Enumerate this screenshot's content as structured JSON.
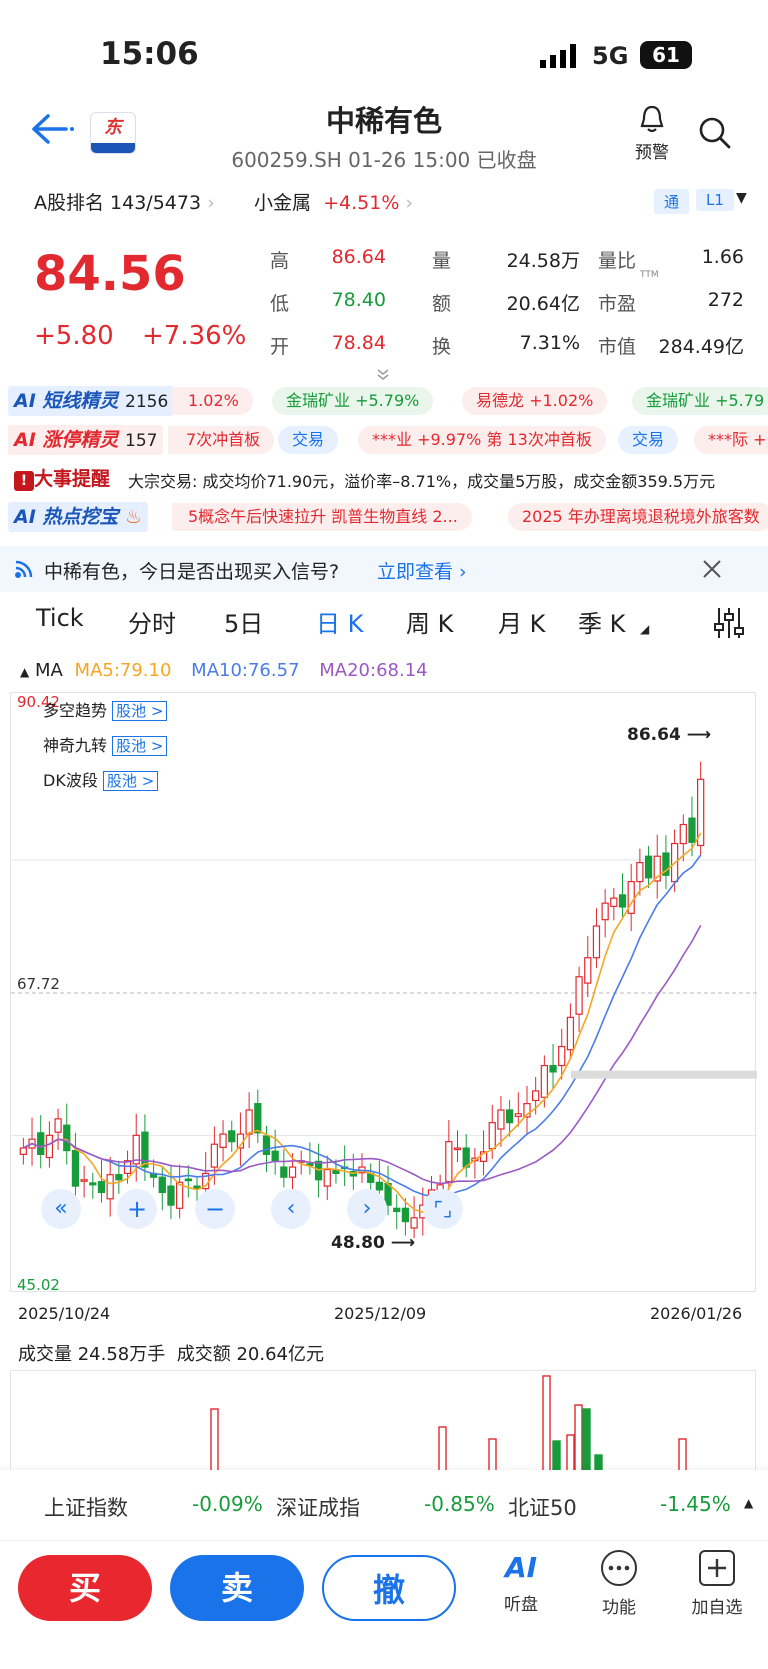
{
  "status": {
    "time": "15:06",
    "network": "5G",
    "battery": "61"
  },
  "header": {
    "title": "中稀有色",
    "subtitle": "600259.SH 01-26 15:00 已收盘",
    "alert_label": "预警"
  },
  "rankbar": {
    "rank": "A股排名 143/5473",
    "sector": "小金属",
    "sector_change": "+4.51%",
    "tag_tong": "通",
    "tag_l1": "L1"
  },
  "quote": {
    "price": "84.56",
    "change": "+5.80",
    "change_pct": "+7.36%",
    "rows": [
      {
        "l1": "高",
        "v1": "86.64",
        "l2": "量",
        "v2": "24.58万",
        "l3": "量比",
        "v3": "1.66"
      },
      {
        "l1": "低",
        "v1": "78.40",
        "l2": "额",
        "v2": "20.64亿",
        "l3": "市盈",
        "v3": "272"
      },
      {
        "l1": "开",
        "v1": "78.84",
        "l2": "换",
        "v2": "7.31%",
        "l3": "市值",
        "v3": "284.49亿"
      }
    ],
    "ttm": "TTM"
  },
  "tickers": {
    "short": {
      "label": "短线精灵",
      "count": "2156",
      "items": [
        "1.02%",
        "金瑞矿业 +5.79%",
        "易德龙 +1.02%",
        "金瑞矿业 +5.79"
      ]
    },
    "limit": {
      "label": "涨停精灵",
      "count": "157",
      "items": [
        "7次冲首板",
        "交易",
        "***业 +9.97% 第 13次冲首板",
        "交易",
        "***际 +"
      ]
    },
    "event": {
      "label": "大事提醒",
      "text": "大宗交易: 成交均价71.90元，溢价率–8.71%，成交量5万股，成交金额359.5万元"
    },
    "hot": {
      "label": "热点挖宝",
      "items": [
        "5概念午后快速拉升 凯普生物直线 2...",
        "2025 年办理离境退税境外旅客数"
      ]
    }
  },
  "banner": {
    "text": "中稀有色，今日是否出现买入信号?",
    "link": "立即查看"
  },
  "tabs": [
    "Tick",
    "分时",
    "5日",
    "日 K",
    "周 K",
    "月 K",
    "季 K"
  ],
  "active_tab": 3,
  "ma": {
    "label": "MA",
    "ma5": "MA5:79.10",
    "ma10": "MA10:76.57",
    "ma20": "MA20:68.14"
  },
  "overlay": {
    "items": [
      "多空趋势",
      "神奇九转",
      "DK波段"
    ],
    "pool": "股池 >"
  },
  "chart_data": {
    "type": "candlestick",
    "y_max_label": "90.42",
    "y_mid_label": "67.72",
    "y_min_label": "45.02",
    "high_label": "86.64",
    "low_label": "48.80",
    "x_labels": [
      "2025/10/24",
      "2025/12/09",
      "2026/01/26"
    ],
    "ma_colors": {
      "ma5": "#f5a623",
      "ma10": "#4a7de8",
      "ma20": "#9b59c6"
    },
    "closes": [
      55.5,
      56.2,
      55.0,
      56.5,
      57.8,
      55.3,
      52.5,
      53.0,
      52.6,
      52.0,
      53.4,
      53.0,
      54.5,
      56.5,
      54.0,
      53.2,
      52.0,
      51.0,
      52.8,
      53.0,
      52.3,
      53.5,
      55.8,
      56.6,
      56.0,
      56.6,
      58.5,
      56.7,
      55.0,
      54.5,
      53.2,
      54.0,
      54.5,
      54.2,
      53.0,
      53.8,
      53.5,
      53.9,
      53.3,
      54.0,
      52.8,
      52.2,
      51.0,
      50.5,
      49.7,
      50.0,
      51.0,
      52.2,
      52.6,
      56.0,
      55.5,
      54.0,
      54.7,
      55.2,
      57.5,
      58.5,
      57.5,
      58.2,
      59.0,
      60.0,
      62.0,
      61.5,
      63.5,
      65.8,
      69.0,
      70.5,
      73.0,
      74.8,
      75.2,
      74.5,
      76.5,
      78.0,
      76.8,
      78.5,
      77.0,
      79.5,
      81.0,
      79.6,
      84.56
    ],
    "volume_label": "成交量 24.58万手",
    "amount_label": "成交额 20.64亿元"
  },
  "indices": [
    {
      "name": "上证指数",
      "value": "-0.09%"
    },
    {
      "name": "深证成指",
      "value": "-0.85%"
    },
    {
      "name": "北证50",
      "value": "-1.45%"
    }
  ],
  "bottom": {
    "buy": "买",
    "sell": "卖",
    "cancel": "撤",
    "ai_label": "听盘",
    "func_label": "功能",
    "add_label": "加自选"
  }
}
